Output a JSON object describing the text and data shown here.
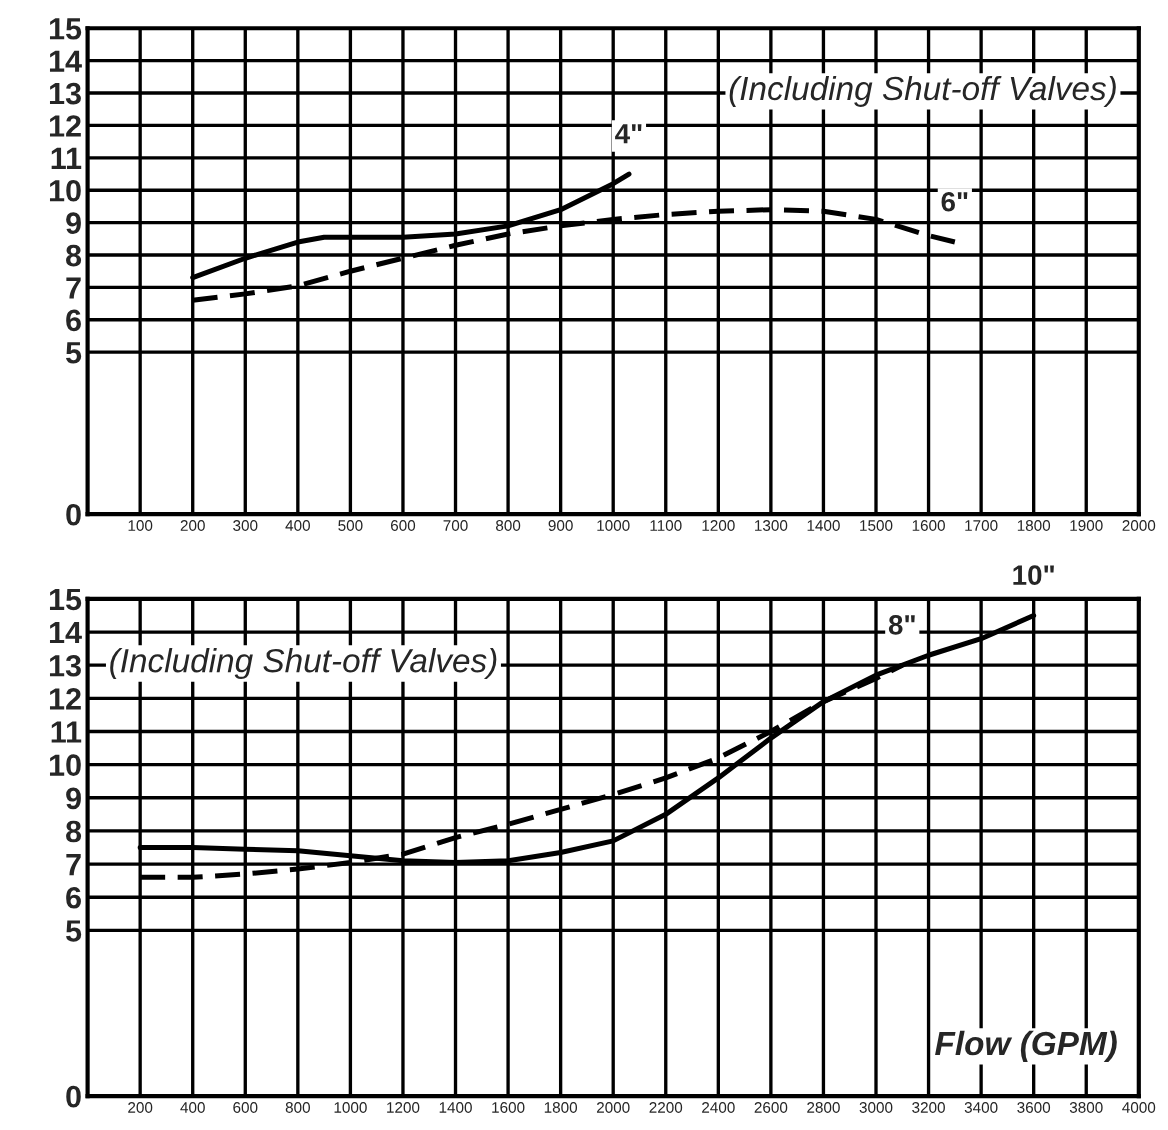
{
  "chart_data": [
    {
      "type": "line",
      "xlim": [
        0,
        2000
      ],
      "xticks": [
        100,
        200,
        300,
        400,
        500,
        600,
        700,
        800,
        900,
        1000,
        1100,
        1200,
        1300,
        1400,
        1500,
        1600,
        1700,
        1800,
        1900,
        2000
      ],
      "ylim": [
        0,
        15
      ],
      "yticks": [
        0,
        5,
        6,
        7,
        8,
        9,
        10,
        11,
        12,
        13,
        14,
        15
      ],
      "grid": true,
      "marker": "none",
      "annotations": [
        "(Including Shut-off Valves)"
      ],
      "series": [
        {
          "name": "4\"",
          "color": "#000000",
          "line_style": "solid",
          "x": [
            200,
            300,
            400,
            450,
            500,
            600,
            700,
            800,
            900,
            1000,
            1030
          ],
          "values": [
            7.3,
            7.9,
            8.4,
            8.55,
            8.55,
            8.55,
            8.65,
            8.9,
            9.4,
            10.2,
            10.5
          ]
        },
        {
          "name": "6\"",
          "color": "#000000",
          "line_style": "dashed",
          "x": [
            200,
            300,
            400,
            500,
            600,
            700,
            800,
            900,
            1000,
            1100,
            1200,
            1300,
            1400,
            1500,
            1600,
            1650
          ],
          "values": [
            6.6,
            6.8,
            7.05,
            7.5,
            7.9,
            8.3,
            8.65,
            8.9,
            9.1,
            9.25,
            9.35,
            9.4,
            9.35,
            9.1,
            8.6,
            8.4
          ]
        }
      ]
    },
    {
      "type": "line",
      "xlim": [
        0,
        4000
      ],
      "xticks": [
        200,
        400,
        600,
        800,
        1000,
        1200,
        1400,
        1600,
        1800,
        2000,
        2200,
        2400,
        2600,
        2800,
        3000,
        3200,
        3400,
        3600,
        3800,
        4000
      ],
      "ylim": [
        0,
        15
      ],
      "yticks": [
        0,
        5,
        6,
        7,
        8,
        9,
        10,
        11,
        12,
        13,
        14,
        15
      ],
      "grid": true,
      "marker": "none",
      "annotations": [
        "(Including Shut-off Valves)",
        "Flow (GPM)"
      ],
      "series": [
        {
          "name": "8\"",
          "color": "#000000",
          "line_style": "dashed",
          "x": [
            200,
            400,
            600,
            800,
            1000,
            1200,
            1400,
            1600,
            1800,
            2000,
            2200,
            2400,
            2600,
            2800,
            3000,
            3100
          ],
          "values": [
            6.6,
            6.6,
            6.7,
            6.85,
            7.05,
            7.3,
            7.8,
            8.2,
            8.65,
            9.1,
            9.6,
            10.2,
            11.0,
            11.9,
            12.6,
            13.0
          ]
        },
        {
          "name": "10\"",
          "color": "#000000",
          "line_style": "solid",
          "x": [
            200,
            400,
            600,
            800,
            1000,
            1200,
            1400,
            1600,
            1800,
            2000,
            2200,
            2400,
            2600,
            2800,
            3000,
            3200,
            3400,
            3600
          ],
          "values": [
            7.5,
            7.5,
            7.45,
            7.4,
            7.25,
            7.1,
            7.05,
            7.1,
            7.35,
            7.7,
            8.5,
            9.6,
            10.8,
            11.9,
            12.7,
            13.3,
            13.8,
            14.5
          ]
        }
      ]
    }
  ]
}
